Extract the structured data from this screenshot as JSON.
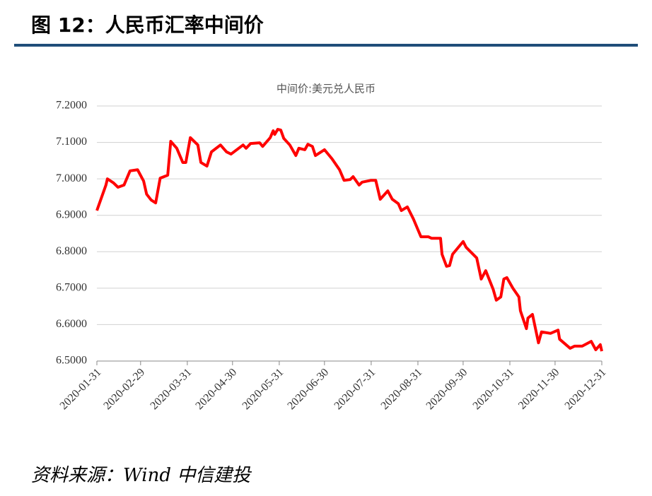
{
  "header": {
    "title": "图 12：人民币汇率中间价"
  },
  "source": "资料来源：Wind 中信建投",
  "chart_data": {
    "type": "line",
    "title": "中间价:美元兑人民币",
    "x": [
      "2020-01-31",
      "2020-02-06",
      "2020-02-07",
      "2020-02-11",
      "2020-02-14",
      "2020-02-18",
      "2020-02-22",
      "2020-02-27",
      "2020-03-02",
      "2020-03-04",
      "2020-03-07",
      "2020-03-10",
      "2020-03-13",
      "2020-03-18",
      "2020-03-20",
      "2020-03-24",
      "2020-03-28",
      "2020-03-30",
      "2020-04-02",
      "2020-04-07",
      "2020-04-09",
      "2020-04-13",
      "2020-04-16",
      "2020-04-22",
      "2020-04-26",
      "2020-04-29",
      "2020-05-07",
      "2020-05-09",
      "2020-05-12",
      "2020-05-18",
      "2020-05-20",
      "2020-05-25",
      "2020-05-27",
      "2020-05-28",
      "2020-05-30",
      "2020-06-01",
      "2020-06-03",
      "2020-06-07",
      "2020-06-11",
      "2020-06-13",
      "2020-06-17",
      "2020-06-19",
      "2020-06-22",
      "2020-06-24",
      "2020-06-30",
      "2020-07-05",
      "2020-07-10",
      "2020-07-13",
      "2020-07-17",
      "2020-07-19",
      "2020-07-23",
      "2020-07-25",
      "2020-07-31",
      "2020-08-03",
      "2020-08-06",
      "2020-08-11",
      "2020-08-14",
      "2020-08-18",
      "2020-08-20",
      "2020-08-24",
      "2020-08-28",
      "2020-09-02",
      "2020-09-07",
      "2020-09-09",
      "2020-09-15",
      "2020-09-16",
      "2020-09-19",
      "2020-09-21",
      "2020-09-23",
      "2020-09-30",
      "2020-10-02",
      "2020-10-09",
      "2020-10-12",
      "2020-10-15",
      "2020-10-20",
      "2020-10-22",
      "2020-10-25",
      "2020-10-27",
      "2020-10-29",
      "2020-11-02",
      "2020-11-06",
      "2020-11-07",
      "2020-11-11",
      "2020-11-12",
      "2020-11-15",
      "2020-11-19",
      "2020-11-21",
      "2020-11-27",
      "2020-12-02",
      "2020-12-03",
      "2020-12-10",
      "2020-12-13",
      "2020-12-18",
      "2020-12-24",
      "2020-12-27",
      "2020-12-30",
      "2020-12-31"
    ],
    "series": [
      {
        "name": "中间价:美元兑人民币",
        "color": "#ff0000",
        "values": [
          6.913,
          6.983,
          7.0,
          6.989,
          6.977,
          6.983,
          7.022,
          7.025,
          6.994,
          6.958,
          6.942,
          6.934,
          7.002,
          7.01,
          7.103,
          7.084,
          7.045,
          7.045,
          7.113,
          7.093,
          7.045,
          7.035,
          7.074,
          7.093,
          7.074,
          7.068,
          7.093,
          7.084,
          7.097,
          7.099,
          7.089,
          7.113,
          7.132,
          7.122,
          7.136,
          7.134,
          7.111,
          7.093,
          7.064,
          7.084,
          7.08,
          7.095,
          7.089,
          7.064,
          7.08,
          7.055,
          7.025,
          6.996,
          6.998,
          7.006,
          6.983,
          6.991,
          6.996,
          6.996,
          6.944,
          6.967,
          6.944,
          6.932,
          6.913,
          6.923,
          6.89,
          6.841,
          6.841,
          6.837,
          6.837,
          6.793,
          6.76,
          6.762,
          6.793,
          6.828,
          6.812,
          6.783,
          6.725,
          6.748,
          6.696,
          6.667,
          6.676,
          6.725,
          6.729,
          6.7,
          6.676,
          6.638,
          6.589,
          6.618,
          6.628,
          6.55,
          6.58,
          6.576,
          6.585,
          6.56,
          6.535,
          6.541,
          6.541,
          6.554,
          6.531,
          6.545,
          6.527
        ]
      }
    ],
    "xlim": [
      "2020-01-31",
      "2020-12-31"
    ],
    "xticks": [
      "2020-01-31",
      "2020-02-29",
      "2020-03-31",
      "2020-04-30",
      "2020-05-31",
      "2020-06-30",
      "2020-07-31",
      "2020-08-31",
      "2020-09-30",
      "2020-10-31",
      "2020-11-30",
      "2020-12-31"
    ],
    "ylim": [
      6.5,
      7.2
    ],
    "yticks": [
      {
        "value": 6.5,
        "label": "6.5000"
      },
      {
        "value": 6.6,
        "label": "6.6000"
      },
      {
        "value": 6.7,
        "label": "6.7000"
      },
      {
        "value": 6.8,
        "label": "6.8000"
      },
      {
        "value": 6.9,
        "label": "6.9000"
      },
      {
        "value": 7.0,
        "label": "7.0000"
      },
      {
        "value": 7.1,
        "label": "7.1000"
      },
      {
        "value": 7.2,
        "label": "7.2000"
      }
    ],
    "grid": true
  }
}
